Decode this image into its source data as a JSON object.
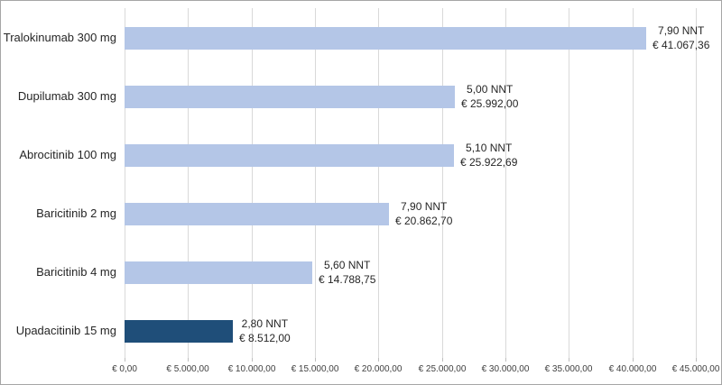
{
  "chart_data": {
    "type": "bar",
    "orientation": "horizontal",
    "title": "",
    "xlabel": "",
    "ylabel": "",
    "xlim": [
      0,
      45000
    ],
    "tick_step": 5000,
    "grid": true,
    "categories": [
      "Tralokinumab 300 mg",
      "Dupilumab 300 mg",
      "Abrocitinib 100 mg",
      "Baricitinib 2 mg",
      "Baricitinib 4 mg",
      "Upadacitinib 15 mg"
    ],
    "values": [
      41067.36,
      25992.0,
      25922.69,
      20862.7,
      14788.75,
      8512.0
    ],
    "nnt_values": [
      7.9,
      5.0,
      5.1,
      7.9,
      5.6,
      2.8
    ],
    "bar_labels": [
      {
        "line1": "7,90 NNT",
        "line2": "€ 41.067,36"
      },
      {
        "line1": "5,00 NNT",
        "line2": "€ 25.992,00"
      },
      {
        "line1": "5,10 NNT",
        "line2": "€ 25.922,69"
      },
      {
        "line1": "7,90 NNT",
        "line2": "€ 20.862,70"
      },
      {
        "line1": "5,60 NNT",
        "line2": "€ 14.788,75"
      },
      {
        "line1": "2,80 NNT",
        "line2": "€ 8.512,00"
      }
    ],
    "x_axis_ticks": [
      "€ 0,00",
      "€ 5.000,00",
      "€ 10.000,00",
      "€ 15.000,00",
      "€ 20.000,00",
      "€ 25.000,00",
      "€ 30.000,00",
      "€ 35.000,00",
      "€ 40.000,00",
      "€ 45.000,00"
    ],
    "colors": {
      "bar_default": "#b4c6e7",
      "bar_highlight": "#1f4e79",
      "highlight_index": 5,
      "gridline": "#d9d9d9",
      "tick": "#bfbfbf",
      "frame_border": "#a6a6a6",
      "label_text": "#262626",
      "axis_text": "#404040"
    }
  }
}
